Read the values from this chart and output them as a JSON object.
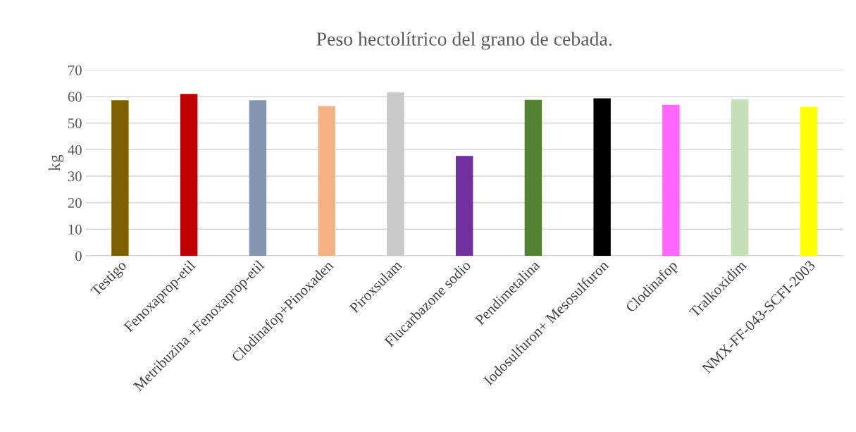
{
  "chart_data": {
    "type": "bar",
    "title": "Peso hectolítrico del grano de cebada.",
    "ylabel": "kg",
    "categories": [
      "Testigo",
      "Fenoxaprop-etil",
      "Metribuzina +Fenoxaprop-etil",
      "Clodinafop+Pinoxaden",
      "Piroxsulam",
      "Flucarbazone sodio",
      "Pendimetalina",
      "Iodosulfuron+ Mesosulfuron",
      "Clodinafop",
      "Tralkoxidim",
      "NMX-FF-043-SCFI-2003"
    ],
    "values": [
      58.6,
      61.0,
      58.6,
      56.4,
      61.5,
      37.6,
      58.7,
      59.3,
      56.9,
      59.0,
      56.0
    ],
    "colors": [
      "#7f6000",
      "#c00000",
      "#8497b0",
      "#f4b183",
      "#c9c9c9",
      "#7030a0",
      "#548235",
      "#000000",
      "#ff66ff",
      "#c5e0b4",
      "#ffff00"
    ],
    "ylim": [
      0,
      70
    ],
    "yticks": [
      0,
      10,
      20,
      30,
      40,
      50,
      60,
      70
    ],
    "grid": "y",
    "legend": false
  }
}
